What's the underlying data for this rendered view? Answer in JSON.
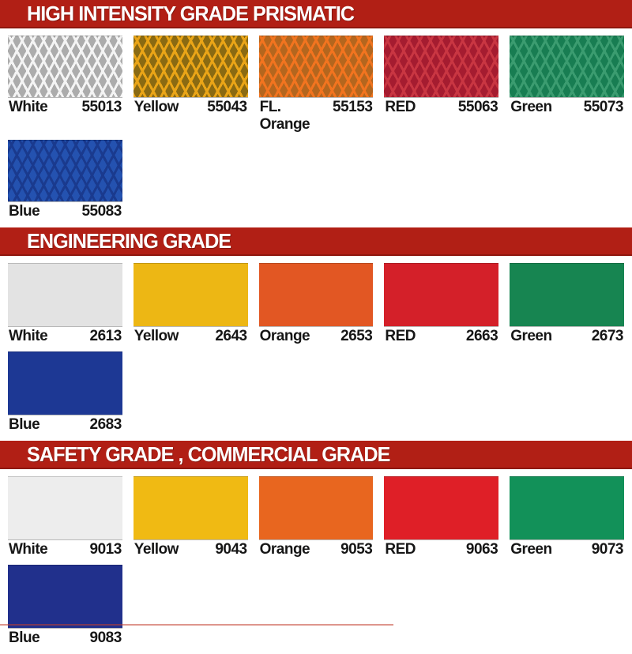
{
  "theme": {
    "header": {
      "fill": "#B11F15"
    },
    "header_text_color": "#FFFFFF",
    "label_text_color": "#161616",
    "bottom_rule_color": "#C2402F"
  },
  "sections": [
    {
      "title": "HIGH INTENSITY GRADE PRISMATIC",
      "pattern": "prismatic-diamond-lattice",
      "swatches": [
        {
          "name": "White",
          "code": "55013",
          "fill": "#ACACAC",
          "lattice": "#F4F4F4"
        },
        {
          "name": "Yellow",
          "code": "55043",
          "fill": "#8A6A12",
          "lattice": "#EAA517"
        },
        {
          "name": "FL. Orange",
          "code": "55153",
          "fill": "#B4661E",
          "lattice": "#F2741F"
        },
        {
          "name": "RED",
          "code": "55063",
          "fill": "#A51C30",
          "lattice": "#C93642"
        },
        {
          "name": "Green",
          "code": "55073",
          "fill": "#187D52",
          "lattice": "#3B9C70"
        },
        {
          "name": "Blue",
          "code": "55083",
          "fill": "#2452B0",
          "lattice": "#1A3A8E"
        }
      ]
    },
    {
      "title": "ENGINEERING GRADE",
      "pattern": "flat",
      "swatches": [
        {
          "name": "White",
          "code": "2613",
          "fill": "#E3E3E3"
        },
        {
          "name": "Yellow",
          "code": "2643",
          "fill": "#EDB714"
        },
        {
          "name": "Orange",
          "code": "2653",
          "fill": "#E25723"
        },
        {
          "name": "RED",
          "code": "2663",
          "fill": "#D42029"
        },
        {
          "name": "Green",
          "code": "2673",
          "fill": "#178551"
        },
        {
          "name": "Blue",
          "code": "2683",
          "fill": "#1D3894"
        }
      ]
    },
    {
      "title": "SAFETY GRADE , COMMERCIAL GRADE",
      "pattern": "flat",
      "swatches": [
        {
          "name": "White",
          "code": "9013",
          "fill": "#EDEDED"
        },
        {
          "name": "Yellow",
          "code": "9043",
          "fill": "#F0BA13"
        },
        {
          "name": "Orange",
          "code": "9053",
          "fill": "#E8661F"
        },
        {
          "name": "RED",
          "code": "9063",
          "fill": "#DF1F27"
        },
        {
          "name": "Green",
          "code": "9073",
          "fill": "#129159"
        },
        {
          "name": "Blue",
          "code": "9083",
          "fill": "#21308C"
        }
      ]
    }
  ]
}
